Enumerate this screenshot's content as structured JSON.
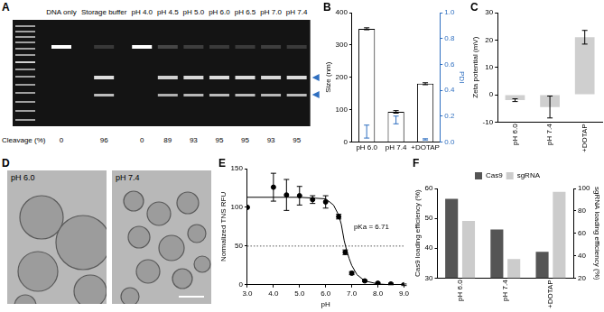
{
  "chart_data": [
    {
      "panel": "A",
      "type": "gel",
      "categories": [
        "DNA only",
        "Storage buffer",
        "pH 4.0",
        "pH 4.5",
        "pH 5.0",
        "pH 6.0",
        "pH 6.5",
        "pH 7.0",
        "pH 7.4"
      ],
      "row_label": "Cleavage (%)",
      "values": [
        0,
        96,
        0,
        89,
        93,
        95,
        95,
        93,
        95
      ]
    },
    {
      "panel": "B",
      "type": "bar",
      "grid": false,
      "categories": [
        "pH 6.0",
        "pH 7.4",
        "+DOTAP"
      ],
      "y_label": "Size (nm)",
      "y2_label": "PDI",
      "series": [
        {
          "type": "bar",
          "color": "#ffffff",
          "values": [
            350,
            93,
            180
          ],
          "errors": [
            3,
            4,
            3
          ]
        },
        {
          "type": "scatter",
          "axis": "y2",
          "color": "#2f6fc0",
          "marker": "circle",
          "values": [
            0.08,
            0.17,
            0.02
          ],
          "errors": [
            0.05,
            0.03,
            0.005
          ]
        }
      ],
      "ylim": [
        0,
        400
      ],
      "yticks": [
        0,
        100,
        200,
        300,
        400
      ],
      "y2lim": [
        0,
        1
      ],
      "y2ticks": [
        {
          "value": 0,
          "label": "0.0"
        },
        0.2,
        0.4,
        0.6,
        0.8,
        {
          "value": 1,
          "label": "1.0"
        }
      ]
    },
    {
      "panel": "C",
      "type": "bar",
      "grid": false,
      "categories": [
        "pH 6.0",
        "pH 7.4",
        "+DOTAP"
      ],
      "y_label": "Zeta potential (mV)",
      "values": [
        -2,
        -4.5,
        21
      ],
      "errors": [
        0.5,
        4,
        2.5
      ],
      "color": "#cfcfcf",
      "ylim": [
        -10,
        30
      ],
      "yticks": [
        -10,
        0,
        10,
        20,
        30
      ]
    },
    {
      "panel": "D",
      "type": "image",
      "labels": [
        "pH 6.0",
        "pH 7.4"
      ]
    },
    {
      "panel": "E",
      "type": "scatter",
      "grid": false,
      "x_label": "pH",
      "y_label": "Normalized TNS RFU",
      "annotation": "pKa = 6.71",
      "series": [
        {
          "type": "scatter",
          "marker": "circle",
          "color": "#000000",
          "x": [
            3.0,
            4.0,
            4.5,
            5.0,
            5.5,
            6.0,
            6.5,
            6.75,
            7.0,
            7.5,
            8.0,
            8.5,
            9.0
          ],
          "values": [
            100,
            126,
            116,
            115,
            110,
            107,
            88,
            42,
            15,
            5,
            2,
            1,
            0
          ],
          "errors": [
            null,
            18,
            20,
            12,
            5,
            8,
            3,
            3,
            2,
            1,
            1,
            1,
            1
          ]
        },
        {
          "type": "line",
          "line_style": "solid",
          "color": "#000000",
          "x": [
            3.0,
            4.0,
            5.0,
            6.0,
            6.3,
            6.5,
            6.6,
            6.71,
            6.8,
            6.9,
            7.0,
            7.2,
            7.5,
            8.0,
            8.5,
            9.0
          ],
          "values": [
            113,
            113,
            113,
            111,
            103,
            90,
            78,
            57,
            45,
            34,
            25,
            13,
            5,
            1,
            0,
            0
          ]
        },
        {
          "type": "line",
          "line_style": "dotted",
          "color": "#555555",
          "x": [
            3.0,
            9.0
          ],
          "values": [
            50,
            50
          ]
        }
      ],
      "xlim": [
        3,
        9
      ],
      "xticks": [
        {
          "value": 3,
          "label": "3.0"
        },
        {
          "value": 4,
          "label": "4.0"
        },
        {
          "value": 5,
          "label": "5.0"
        },
        {
          "value": 6,
          "label": "6.0"
        },
        {
          "value": 7,
          "label": "7.0"
        },
        {
          "value": 8,
          "label": "8.0"
        },
        {
          "value": 9,
          "label": "9.0"
        }
      ],
      "ylim": [
        0,
        150
      ],
      "yticks": [
        0,
        50,
        100,
        150
      ]
    },
    {
      "panel": "F",
      "type": "bar",
      "grid": false,
      "legend": "top",
      "categories": [
        "pH 6.0",
        "pH 7.4",
        "+DOTAP"
      ],
      "y_label": "Cas9 loading efficiency (%)",
      "y2_label": "sgRNA loading efficiency (%)",
      "series": [
        {
          "name": "Cas9",
          "type": "bar",
          "color": "#555555",
          "values": [
            56.5,
            46.3,
            38.8
          ]
        },
        {
          "name": "sgRNA",
          "type": "bar",
          "axis": "y2",
          "color": "#cccccc",
          "values": [
            71,
            37,
            97
          ]
        }
      ],
      "ylim": [
        30,
        60
      ],
      "yticks": [
        30,
        40,
        50,
        60
      ],
      "y2lim": [
        20,
        100
      ],
      "y2ticks": [
        20,
        40,
        60,
        80,
        100
      ]
    }
  ]
}
